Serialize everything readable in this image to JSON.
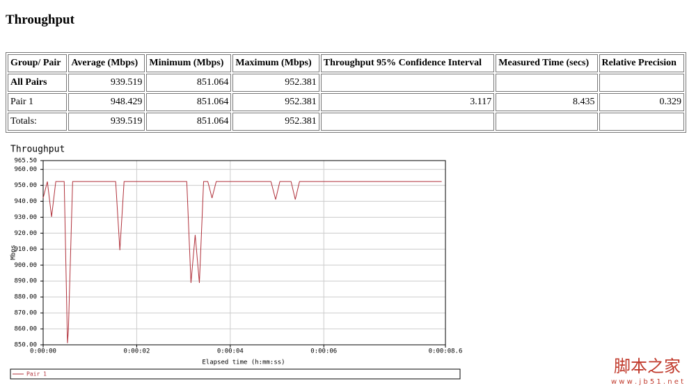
{
  "header": {
    "title": "Throughput"
  },
  "table": {
    "headers": [
      "Group/ Pair",
      "Average (Mbps)",
      "Minimum (Mbps)",
      "Maximum (Mbps)",
      "Throughput 95% Confidence Interval",
      "Measured Time (secs)",
      "Relative Precision"
    ],
    "rows": [
      [
        "All Pairs",
        "939.519",
        "851.064",
        "952.381",
        null,
        null,
        null
      ],
      [
        "Pair 1",
        "948.429",
        "851.064",
        "952.381",
        "3.117",
        "8.435",
        "0.329"
      ],
      [
        "Totals:",
        "939.519",
        "851.064",
        "952.381",
        null,
        null,
        null
      ]
    ]
  },
  "chart_data": {
    "type": "line",
    "title": "Throughput",
    "y_label": "Mbps",
    "x_label": "Elapsed time (h:mm:ss)",
    "x": [
      0,
      0.09,
      0.18,
      0.27,
      0.45,
      0.52,
      0.54,
      0.63,
      1.55,
      1.64,
      1.73,
      3.07,
      3.16,
      3.25,
      3.34,
      3.43,
      3.52,
      3.61,
      3.7,
      4.87,
      4.97,
      5.06,
      5.3,
      5.39,
      5.48,
      8.52
    ],
    "series": [
      {
        "name": "Pair 1",
        "color": "#b0303a",
        "values": [
          942,
          952.381,
          930.2,
          952.381,
          952.381,
          851.064,
          859.5,
          952.381,
          952.381,
          909.3,
          952.381,
          952.381,
          888.8,
          918.9,
          888.8,
          952.381,
          952.381,
          942,
          952.381,
          952.381,
          941.1,
          952.381,
          952.381,
          941.1,
          952.381,
          952.381
        ]
      }
    ],
    "xlim": [
      0,
      8.6
    ],
    "xticks": [
      {
        "value": 0,
        "label": "0:00:00"
      },
      {
        "value": 2,
        "label": "0:00:02"
      },
      {
        "value": 4,
        "label": "0:00:04"
      },
      {
        "value": 6,
        "label": "0:00:06"
      },
      {
        "value": 8.6,
        "label": "0:00:08.6"
      }
    ],
    "ylim": [
      850,
      965.5
    ],
    "yticks": [
      {
        "value": 850,
        "label": "850.00"
      },
      {
        "value": 860,
        "label": "860.00"
      },
      {
        "value": 870,
        "label": "870.00"
      },
      {
        "value": 880,
        "label": "880.00"
      },
      {
        "value": 890,
        "label": "890.00"
      },
      {
        "value": 900,
        "label": "900.00"
      },
      {
        "value": 910,
        "label": "910.00"
      },
      {
        "value": 920,
        "label": "920.00"
      },
      {
        "value": 930,
        "label": "930.00"
      },
      {
        "value": 940,
        "label": "940.00"
      },
      {
        "value": 950,
        "label": "950.00"
      },
      {
        "value": 960,
        "label": "960.00"
      },
      {
        "value": 965.5,
        "label": "965.50"
      }
    ],
    "grid": true
  },
  "watermark": {
    "title": "脚本之家",
    "url": "w w w . j b 5 1 . n e t"
  }
}
